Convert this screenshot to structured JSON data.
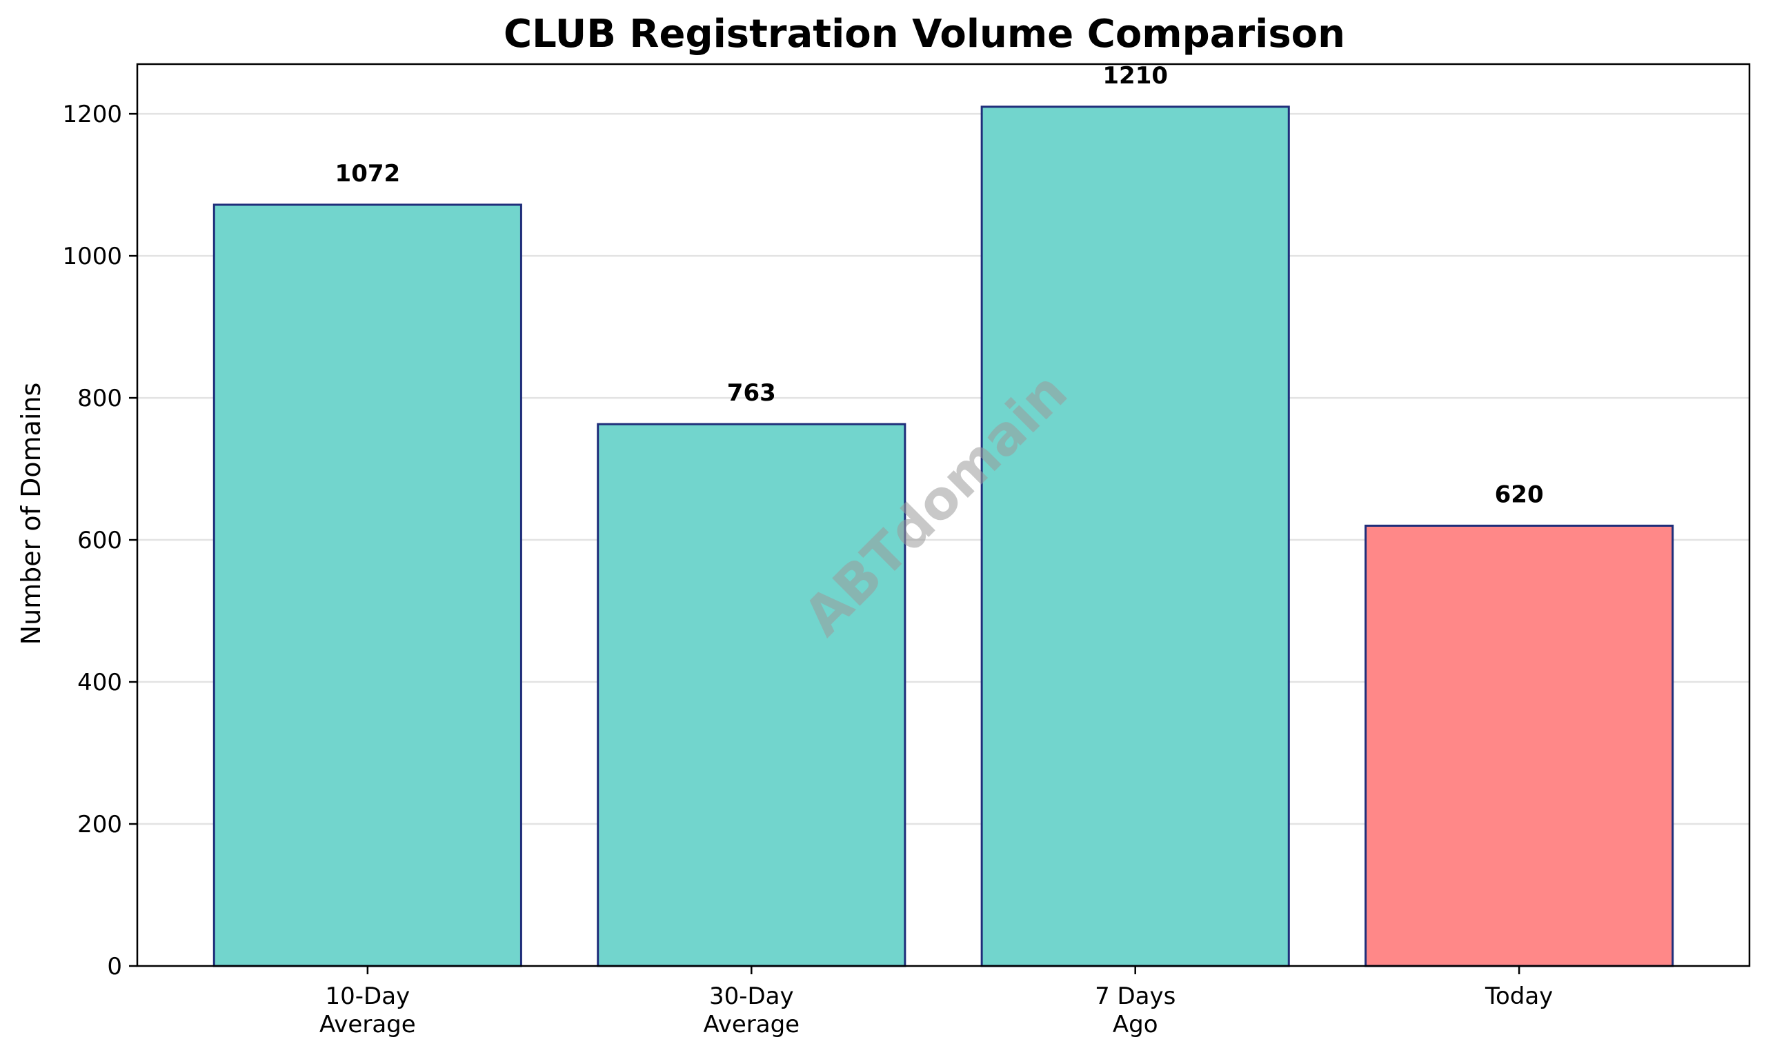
{
  "chart_data": {
    "type": "bar",
    "title": "CLUB Registration Volume Comparison",
    "xlabel": "",
    "ylabel": "Number of Domains",
    "categories": [
      [
        "10-Day",
        "Average"
      ],
      [
        "30-Day",
        "Average"
      ],
      [
        "7 Days",
        "Ago"
      ],
      [
        "Today"
      ]
    ],
    "values": [
      1072,
      763,
      1210,
      620
    ],
    "data_labels": [
      "1072",
      "763",
      "1210",
      "620"
    ],
    "bar_colors": [
      "#72d5cd",
      "#72d5cd",
      "#72d5cd",
      "#ff8888"
    ],
    "bar_edge_color": "#1f2e7a",
    "ylim": [
      0,
      1270
    ],
    "yticks": [
      0,
      200,
      400,
      600,
      800,
      1000,
      1200
    ],
    "grid": "horizontal",
    "watermark": "ABTdomain"
  }
}
